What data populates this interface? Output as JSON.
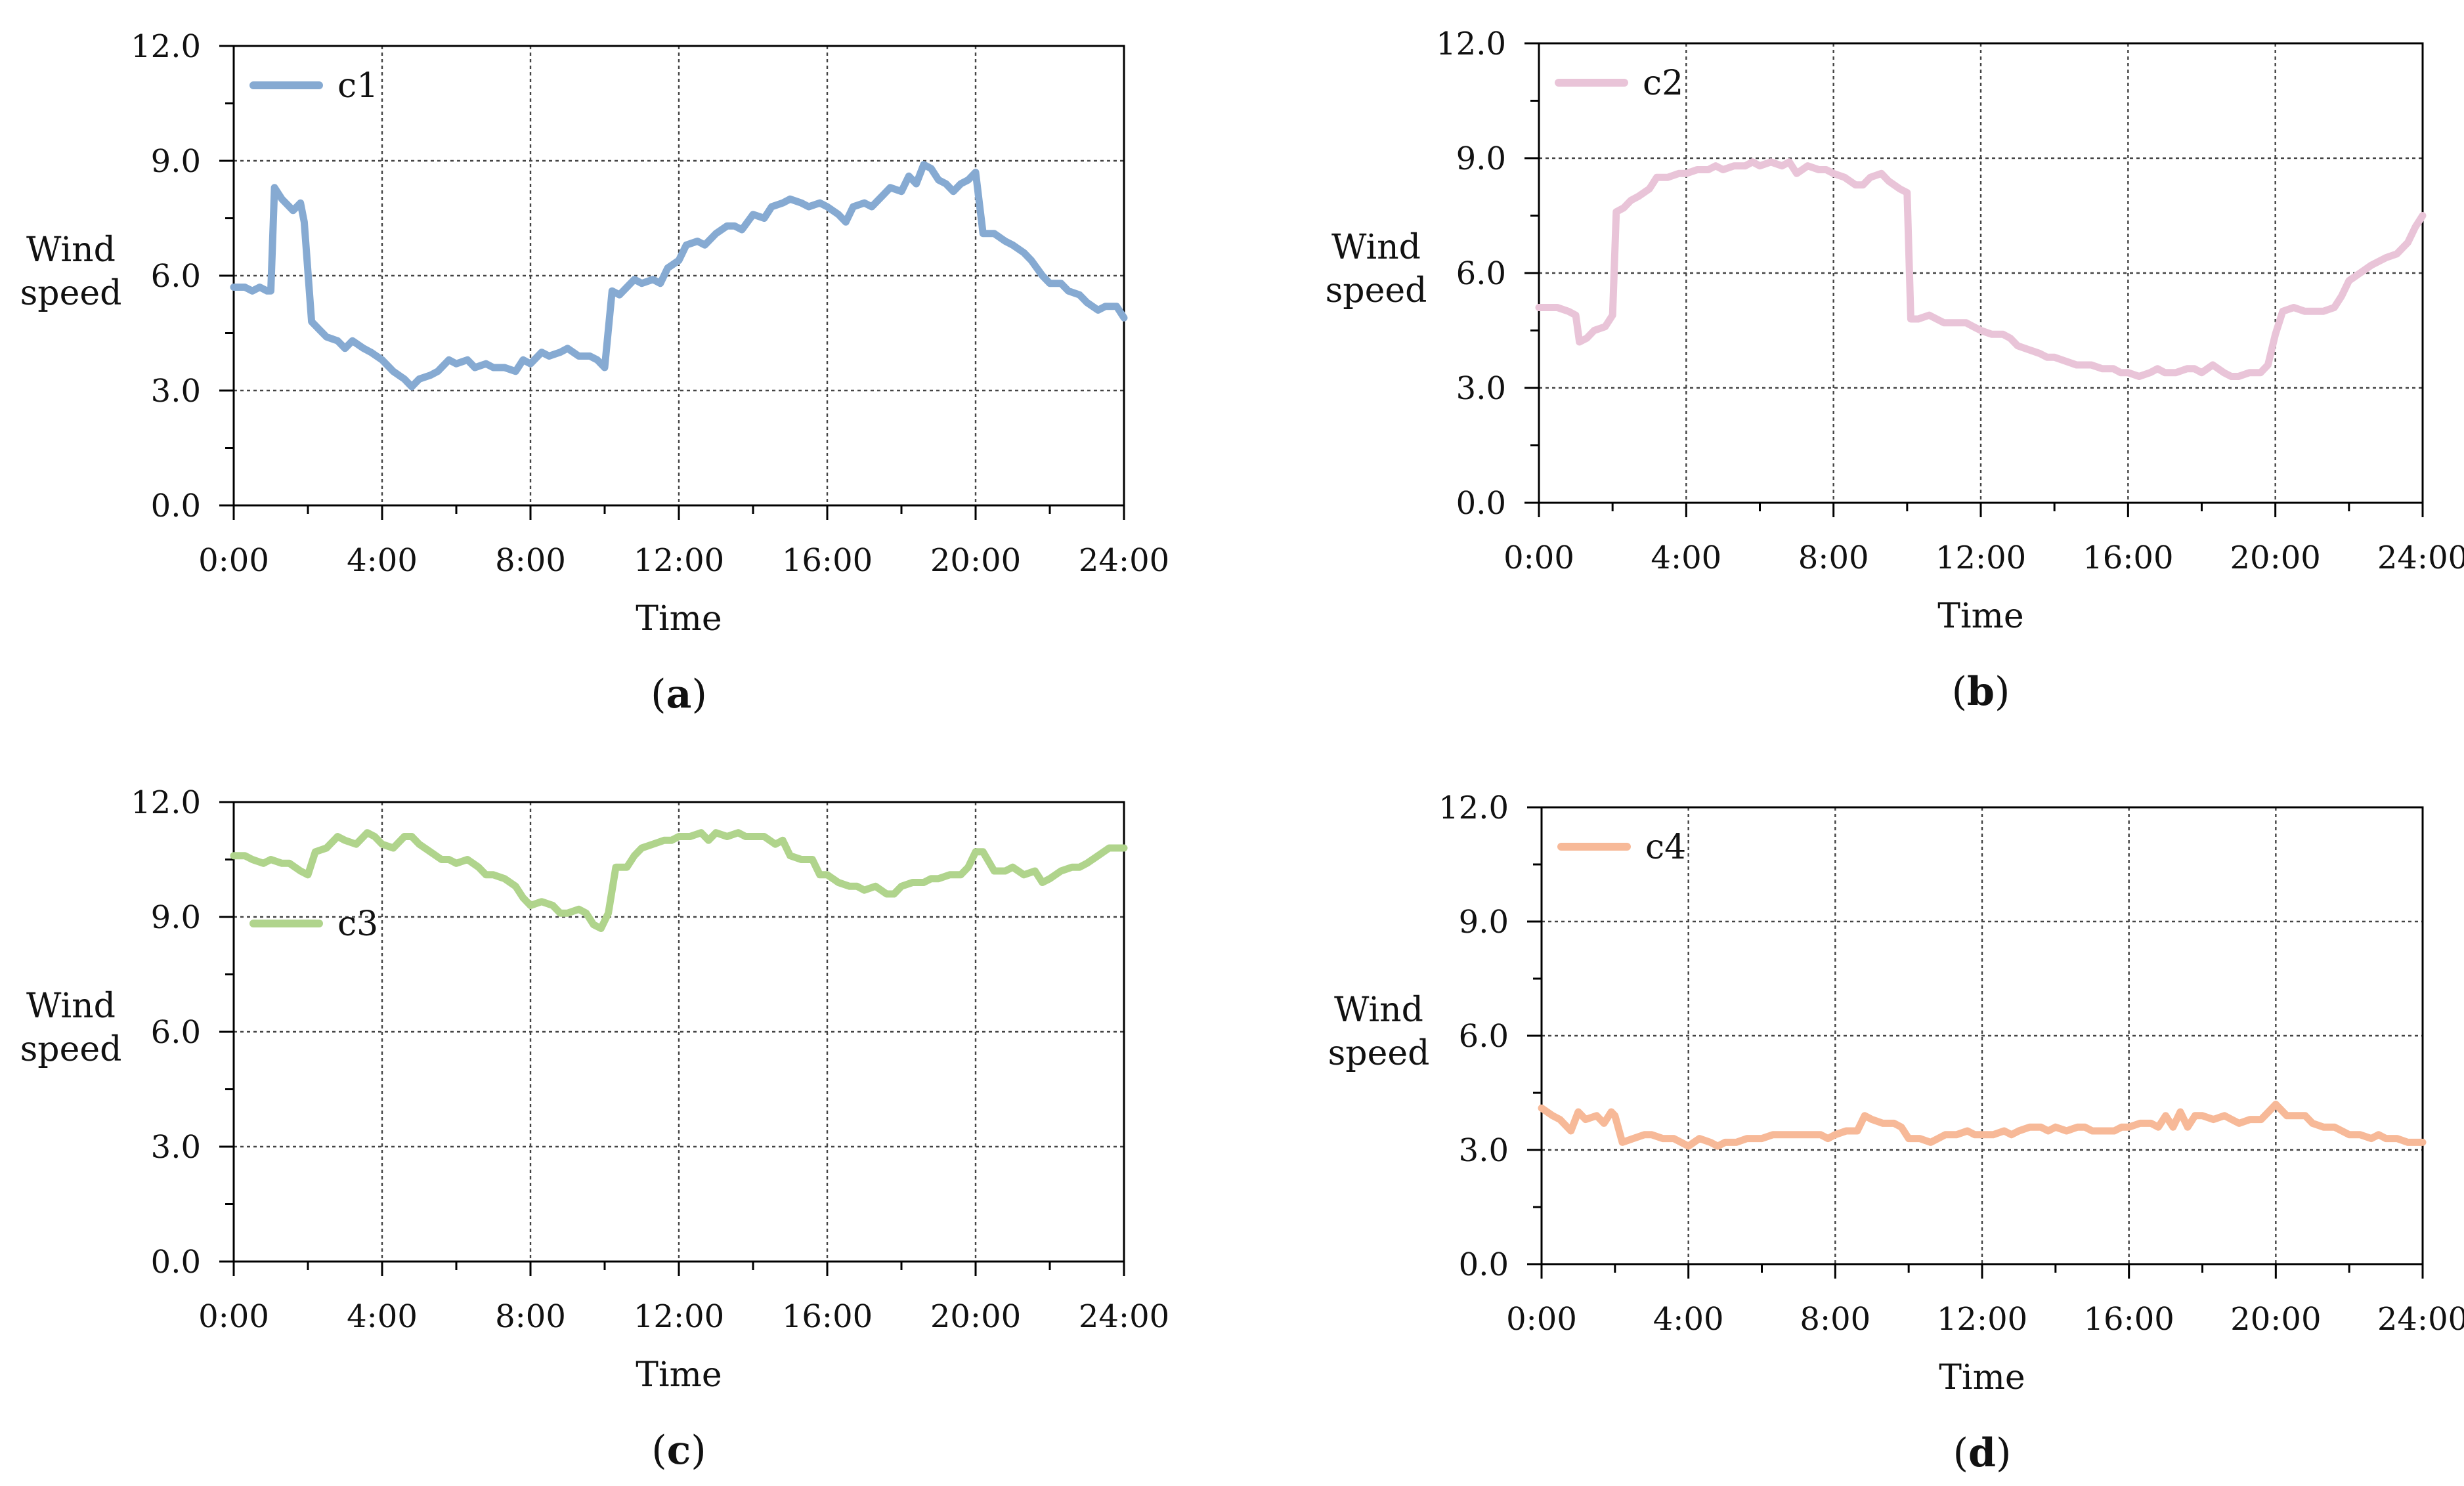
{
  "chart_data": [
    {
      "type": "line",
      "panel_label": "a",
      "xlabel": "Time",
      "ylabel": "Wind speed",
      "x_tick_labels": [
        "0:00",
        "4:00",
        "8:00",
        "12:00",
        "16:00",
        "20:00",
        "24:00"
      ],
      "y_tick_labels": [
        "0.0",
        "3.0",
        "6.0",
        "9.0",
        "12.0"
      ],
      "xlim": [
        0,
        24
      ],
      "ylim": [
        0,
        12
      ],
      "grid": true,
      "legend_position": "top-left",
      "series": [
        {
          "name": "c1",
          "color": "#86aad2",
          "x": [
            0,
            0.3,
            0.5,
            0.7,
            0.9,
            1.0,
            1.1,
            1.3,
            1.5,
            1.6,
            1.8,
            1.9,
            2.1,
            2.3,
            2.5,
            2.8,
            3.0,
            3.2,
            3.5,
            3.7,
            4.0,
            4.3,
            4.6,
            4.8,
            5.0,
            5.3,
            5.5,
            5.8,
            6.0,
            6.3,
            6.5,
            6.8,
            7.0,
            7.3,
            7.6,
            7.8,
            8.0,
            8.3,
            8.5,
            8.8,
            9.0,
            9.3,
            9.6,
            9.8,
            10.0,
            10.2,
            10.4,
            10.6,
            10.8,
            11.0,
            11.3,
            11.5,
            11.7,
            12.0,
            12.2,
            12.5,
            12.7,
            13.0,
            13.3,
            13.5,
            13.7,
            14.0,
            14.3,
            14.5,
            14.8,
            15.0,
            15.3,
            15.5,
            15.8,
            16.0,
            16.3,
            16.5,
            16.7,
            17.0,
            17.2,
            17.5,
            17.7,
            18.0,
            18.2,
            18.4,
            18.6,
            18.8,
            19.0,
            19.2,
            19.4,
            19.6,
            19.8,
            20.0,
            20.2,
            20.5,
            20.8,
            21.0,
            21.3,
            21.5,
            21.8,
            22.0,
            22.3,
            22.5,
            22.8,
            23.0,
            23.3,
            23.5,
            23.8,
            24.0
          ],
          "values": [
            5.7,
            5.7,
            5.6,
            5.7,
            5.6,
            5.6,
            8.3,
            8.0,
            7.8,
            7.7,
            7.9,
            7.4,
            4.8,
            4.6,
            4.4,
            4.3,
            4.1,
            4.3,
            4.1,
            4.0,
            3.8,
            3.5,
            3.3,
            3.1,
            3.3,
            3.4,
            3.5,
            3.8,
            3.7,
            3.8,
            3.6,
            3.7,
            3.6,
            3.6,
            3.5,
            3.8,
            3.7,
            4.0,
            3.9,
            4.0,
            4.1,
            3.9,
            3.9,
            3.8,
            3.6,
            5.6,
            5.5,
            5.7,
            5.9,
            5.8,
            5.9,
            5.8,
            6.2,
            6.4,
            6.8,
            6.9,
            6.8,
            7.1,
            7.3,
            7.3,
            7.2,
            7.6,
            7.5,
            7.8,
            7.9,
            8.0,
            7.9,
            7.8,
            7.9,
            7.8,
            7.6,
            7.4,
            7.8,
            7.9,
            7.8,
            8.1,
            8.3,
            8.2,
            8.6,
            8.4,
            8.9,
            8.8,
            8.5,
            8.4,
            8.2,
            8.4,
            8.5,
            8.7,
            7.1,
            7.1,
            6.9,
            6.8,
            6.6,
            6.4,
            6.0,
            5.8,
            5.8,
            5.6,
            5.5,
            5.3,
            5.1,
            5.2,
            5.2,
            4.9
          ]
        }
      ]
    },
    {
      "type": "line",
      "panel_label": "b",
      "xlabel": "Time",
      "ylabel": "Wind speed",
      "x_tick_labels": [
        "0:00",
        "4:00",
        "8:00",
        "12:00",
        "16:00",
        "20:00",
        "24:00"
      ],
      "y_tick_labels": [
        "0.0",
        "3.0",
        "6.0",
        "9.0",
        "12.0"
      ],
      "xlim": [
        0,
        24
      ],
      "ylim": [
        0,
        12
      ],
      "grid": true,
      "legend_position": "top-left",
      "series": [
        {
          "name": "c2",
          "color": "#e9c4d8",
          "x": [
            0,
            0.2,
            0.5,
            0.8,
            1.0,
            1.1,
            1.3,
            1.5,
            1.8,
            2.0,
            2.1,
            2.3,
            2.5,
            2.7,
            3.0,
            3.2,
            3.5,
            3.8,
            4.0,
            4.3,
            4.6,
            4.8,
            5.0,
            5.3,
            5.6,
            5.8,
            6.0,
            6.3,
            6.6,
            6.8,
            7.0,
            7.3,
            7.6,
            7.8,
            8.0,
            8.3,
            8.6,
            8.8,
            9.0,
            9.3,
            9.5,
            9.8,
            10.0,
            10.1,
            10.3,
            10.6,
            10.8,
            11.0,
            11.3,
            11.6,
            11.8,
            12.0,
            12.3,
            12.6,
            12.8,
            13.0,
            13.3,
            13.6,
            13.8,
            14.0,
            14.3,
            14.6,
            14.8,
            15.0,
            15.3,
            15.6,
            15.8,
            16.0,
            16.3,
            16.6,
            16.8,
            17.0,
            17.3,
            17.6,
            17.8,
            18.0,
            18.3,
            18.6,
            18.8,
            19.0,
            19.3,
            19.6,
            19.8,
            20.0,
            20.2,
            20.5,
            20.8,
            21.0,
            21.3,
            21.6,
            21.8,
            22.0,
            22.3,
            22.6,
            22.8,
            23.0,
            23.3,
            23.6,
            23.8,
            24.0
          ],
          "values": [
            5.1,
            5.1,
            5.1,
            5.0,
            4.9,
            4.2,
            4.3,
            4.5,
            4.6,
            4.9,
            7.6,
            7.7,
            7.9,
            8.0,
            8.2,
            8.5,
            8.5,
            8.6,
            8.6,
            8.7,
            8.7,
            8.8,
            8.7,
            8.8,
            8.8,
            8.9,
            8.8,
            8.9,
            8.8,
            8.9,
            8.6,
            8.8,
            8.7,
            8.7,
            8.6,
            8.5,
            8.3,
            8.3,
            8.5,
            8.6,
            8.4,
            8.2,
            8.1,
            4.8,
            4.8,
            4.9,
            4.8,
            4.7,
            4.7,
            4.7,
            4.6,
            4.5,
            4.4,
            4.4,
            4.3,
            4.1,
            4.0,
            3.9,
            3.8,
            3.8,
            3.7,
            3.6,
            3.6,
            3.6,
            3.5,
            3.5,
            3.4,
            3.4,
            3.3,
            3.4,
            3.5,
            3.4,
            3.4,
            3.5,
            3.5,
            3.4,
            3.6,
            3.4,
            3.3,
            3.3,
            3.4,
            3.4,
            3.6,
            4.4,
            5.0,
            5.1,
            5.0,
            5.0,
            5.0,
            5.1,
            5.4,
            5.8,
            6.0,
            6.2,
            6.3,
            6.4,
            6.5,
            6.8,
            7.2,
            7.5
          ]
        }
      ]
    },
    {
      "type": "line",
      "panel_label": "c",
      "xlabel": "Time",
      "ylabel": "Wind speed",
      "x_tick_labels": [
        "0:00",
        "4:00",
        "8:00",
        "12:00",
        "16:00",
        "20:00",
        "24:00"
      ],
      "y_tick_labels": [
        "0.0",
        "3.0",
        "6.0",
        "9.0",
        "12.0"
      ],
      "xlim": [
        0,
        24
      ],
      "ylim": [
        0,
        12
      ],
      "grid": true,
      "legend_position": "upper-left",
      "series": [
        {
          "name": "c3",
          "color": "#b0d48c",
          "x": [
            0,
            0.3,
            0.5,
            0.8,
            1.0,
            1.3,
            1.5,
            1.8,
            2.0,
            2.2,
            2.5,
            2.8,
            3.0,
            3.3,
            3.6,
            3.8,
            4.0,
            4.3,
            4.6,
            4.8,
            5.0,
            5.3,
            5.6,
            5.8,
            6.0,
            6.3,
            6.6,
            6.8,
            7.0,
            7.3,
            7.6,
            7.8,
            8.0,
            8.3,
            8.6,
            8.8,
            9.0,
            9.3,
            9.5,
            9.7,
            9.9,
            10.1,
            10.3,
            10.6,
            10.8,
            11.0,
            11.3,
            11.6,
            11.8,
            12.0,
            12.3,
            12.6,
            12.8,
            13.0,
            13.3,
            13.6,
            13.8,
            14.0,
            14.3,
            14.6,
            14.8,
            15.0,
            15.3,
            15.6,
            15.8,
            16.0,
            16.3,
            16.6,
            16.8,
            17.0,
            17.3,
            17.6,
            17.8,
            18.0,
            18.3,
            18.6,
            18.8,
            19.0,
            19.3,
            19.6,
            19.8,
            20.0,
            20.2,
            20.5,
            20.8,
            21.0,
            21.3,
            21.6,
            21.8,
            22.0,
            22.3,
            22.6,
            22.8,
            23.0,
            23.3,
            23.6,
            23.8,
            24.0
          ],
          "values": [
            10.6,
            10.6,
            10.5,
            10.4,
            10.5,
            10.4,
            10.4,
            10.2,
            10.1,
            10.7,
            10.8,
            11.1,
            11.0,
            10.9,
            11.2,
            11.1,
            10.9,
            10.8,
            11.1,
            11.1,
            10.9,
            10.7,
            10.5,
            10.5,
            10.4,
            10.5,
            10.3,
            10.1,
            10.1,
            10.0,
            9.8,
            9.5,
            9.3,
            9.4,
            9.3,
            9.1,
            9.1,
            9.2,
            9.1,
            8.8,
            8.7,
            9.1,
            10.3,
            10.3,
            10.6,
            10.8,
            10.9,
            11.0,
            11.0,
            11.1,
            11.1,
            11.2,
            11.0,
            11.2,
            11.1,
            11.2,
            11.1,
            11.1,
            11.1,
            10.9,
            11.0,
            10.6,
            10.5,
            10.5,
            10.1,
            10.1,
            9.9,
            9.8,
            9.8,
            9.7,
            9.8,
            9.6,
            9.6,
            9.8,
            9.9,
            9.9,
            10.0,
            10.0,
            10.1,
            10.1,
            10.3,
            10.7,
            10.7,
            10.2,
            10.2,
            10.3,
            10.1,
            10.2,
            9.9,
            10.0,
            10.2,
            10.3,
            10.3,
            10.4,
            10.6,
            10.8,
            10.8,
            10.8
          ]
        }
      ]
    },
    {
      "type": "line",
      "panel_label": "d",
      "xlabel": "Time",
      "ylabel": "Wind speed",
      "x_tick_labels": [
        "0:00",
        "4:00",
        "8:00",
        "12:00",
        "16:00",
        "20:00",
        "24:00"
      ],
      "y_tick_labels": [
        "0.0",
        "3.0",
        "6.0",
        "9.0",
        "12.0"
      ],
      "xlim": [
        0,
        24
      ],
      "ylim": [
        0,
        12
      ],
      "grid": true,
      "legend_position": "top-left",
      "series": [
        {
          "name": "c4",
          "color": "#f7b998",
          "x": [
            0,
            0.3,
            0.5,
            0.8,
            1.0,
            1.2,
            1.5,
            1.7,
            1.9,
            2.0,
            2.2,
            2.5,
            2.8,
            3.0,
            3.3,
            3.6,
            3.8,
            4.0,
            4.3,
            4.6,
            4.8,
            5.0,
            5.3,
            5.6,
            5.8,
            6.0,
            6.3,
            6.6,
            6.8,
            7.0,
            7.3,
            7.6,
            7.8,
            8.0,
            8.3,
            8.6,
            8.8,
            9.0,
            9.3,
            9.6,
            9.8,
            10.0,
            10.3,
            10.6,
            10.8,
            11.0,
            11.3,
            11.6,
            11.8,
            12.0,
            12.3,
            12.6,
            12.8,
            13.0,
            13.3,
            13.6,
            13.8,
            14.0,
            14.3,
            14.6,
            14.8,
            15.0,
            15.3,
            15.6,
            15.8,
            16.0,
            16.3,
            16.6,
            16.8,
            17.0,
            17.2,
            17.4,
            17.6,
            17.8,
            18.0,
            18.3,
            18.6,
            18.8,
            19.0,
            19.3,
            19.6,
            19.8,
            20.0,
            20.3,
            20.6,
            20.8,
            21.0,
            21.3,
            21.6,
            21.8,
            22.0,
            22.3,
            22.6,
            22.8,
            23.0,
            23.3,
            23.6,
            23.8,
            24.0
          ],
          "values": [
            4.1,
            3.9,
            3.8,
            3.5,
            4.0,
            3.8,
            3.9,
            3.7,
            4.0,
            3.9,
            3.2,
            3.3,
            3.4,
            3.4,
            3.3,
            3.3,
            3.2,
            3.1,
            3.3,
            3.2,
            3.1,
            3.2,
            3.2,
            3.3,
            3.3,
            3.3,
            3.4,
            3.4,
            3.4,
            3.4,
            3.4,
            3.4,
            3.3,
            3.4,
            3.5,
            3.5,
            3.9,
            3.8,
            3.7,
            3.7,
            3.6,
            3.3,
            3.3,
            3.2,
            3.3,
            3.4,
            3.4,
            3.5,
            3.4,
            3.4,
            3.4,
            3.5,
            3.4,
            3.5,
            3.6,
            3.6,
            3.5,
            3.6,
            3.5,
            3.6,
            3.6,
            3.5,
            3.5,
            3.5,
            3.6,
            3.6,
            3.7,
            3.7,
            3.6,
            3.9,
            3.6,
            4.0,
            3.6,
            3.9,
            3.9,
            3.8,
            3.9,
            3.8,
            3.7,
            3.8,
            3.8,
            4.0,
            4.2,
            3.9,
            3.9,
            3.9,
            3.7,
            3.6,
            3.6,
            3.5,
            3.4,
            3.4,
            3.3,
            3.4,
            3.3,
            3.3,
            3.2,
            3.2,
            3.2
          ]
        }
      ]
    }
  ]
}
